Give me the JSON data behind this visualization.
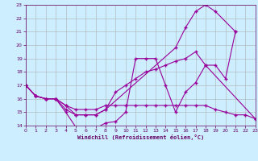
{
  "xlabel": "Windchill (Refroidissement éolien,°C)",
  "bg_color": "#cceeff",
  "grid_color": "#b0b0b0",
  "line_color": "#990099",
  "xlim": [
    0,
    23
  ],
  "ylim": [
    14,
    23
  ],
  "xticks": [
    0,
    1,
    2,
    3,
    4,
    5,
    6,
    7,
    8,
    9,
    10,
    11,
    12,
    13,
    14,
    15,
    16,
    17,
    18,
    19,
    20,
    21,
    22,
    23
  ],
  "yticks": [
    14,
    15,
    16,
    17,
    18,
    19,
    20,
    21,
    22,
    23
  ],
  "series": [
    {
      "x": [
        0,
        1,
        2,
        3,
        4,
        5,
        6,
        7,
        8,
        9,
        10,
        11,
        12,
        13,
        14,
        15,
        16,
        17,
        18,
        19,
        20,
        21
      ],
      "y": [
        17.0,
        16.2,
        16.0,
        16.0,
        15.0,
        13.9,
        13.8,
        13.8,
        14.2,
        14.3,
        15.0,
        19.0,
        19.0,
        19.0,
        17.0,
        15.0,
        16.5,
        17.2,
        18.5,
        18.5,
        17.5,
        21.0
      ]
    },
    {
      "x": [
        0,
        1,
        2,
        3,
        4,
        5,
        6,
        7,
        8,
        15,
        16,
        17,
        18,
        19,
        21
      ],
      "y": [
        17.0,
        16.2,
        16.0,
        16.0,
        15.5,
        14.8,
        14.8,
        14.8,
        15.2,
        19.8,
        21.3,
        22.5,
        23.0,
        22.5,
        21.0
      ]
    },
    {
      "x": [
        0,
        1,
        2,
        3,
        4,
        5,
        6,
        7,
        8,
        9,
        10,
        11,
        12,
        13,
        14,
        15,
        16,
        17,
        18,
        23
      ],
      "y": [
        17.0,
        16.2,
        16.0,
        16.0,
        15.2,
        14.8,
        14.8,
        14.8,
        15.2,
        16.5,
        17.0,
        17.5,
        18.0,
        18.2,
        18.5,
        18.8,
        19.0,
        19.5,
        18.5,
        14.5
      ]
    },
    {
      "x": [
        0,
        1,
        2,
        3,
        4,
        5,
        6,
        7,
        8,
        9,
        10,
        11,
        12,
        13,
        14,
        15,
        16,
        17,
        18,
        19,
        20,
        21,
        22,
        23
      ],
      "y": [
        17.0,
        16.2,
        16.0,
        16.0,
        15.5,
        15.2,
        15.2,
        15.2,
        15.5,
        15.5,
        15.5,
        15.5,
        15.5,
        15.5,
        15.5,
        15.5,
        15.5,
        15.5,
        15.5,
        15.2,
        15.0,
        14.8,
        14.8,
        14.5
      ]
    }
  ]
}
